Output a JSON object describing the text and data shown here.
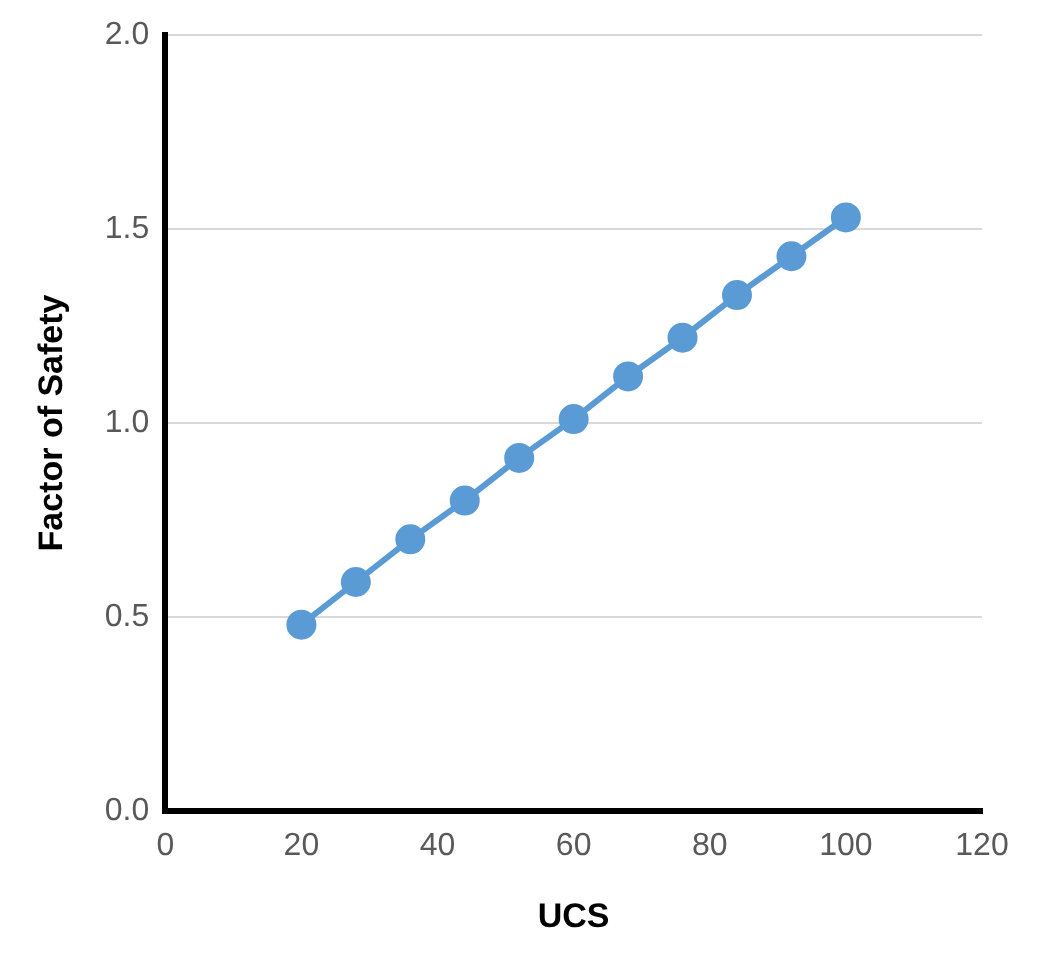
{
  "chart_data": {
    "type": "line",
    "xlabel": "UCS",
    "ylabel": "Factor of Safety",
    "x": [
      20,
      28,
      36,
      44,
      52,
      60,
      68,
      76,
      84,
      92,
      100
    ],
    "series": [
      {
        "color": "#5b9bd5",
        "values": [
          0.48,
          0.59,
          0.7,
          0.8,
          0.91,
          1.01,
          1.12,
          1.22,
          1.33,
          1.43,
          1.53
        ]
      }
    ],
    "xlim": [
      0,
      120
    ],
    "xticks": [
      0,
      20,
      40,
      60,
      80,
      100,
      120
    ],
    "ylim": [
      0,
      2
    ],
    "yticks": [
      {
        "value": 0,
        "label": "0.0"
      },
      {
        "value": 0.5,
        "label": "0.5"
      },
      {
        "value": 1,
        "label": "1.0"
      },
      {
        "value": 1.5,
        "label": "1.5"
      },
      {
        "value": 2,
        "label": "2.0"
      }
    ],
    "grid": "y",
    "marker": "circle",
    "line_style": "solid"
  }
}
